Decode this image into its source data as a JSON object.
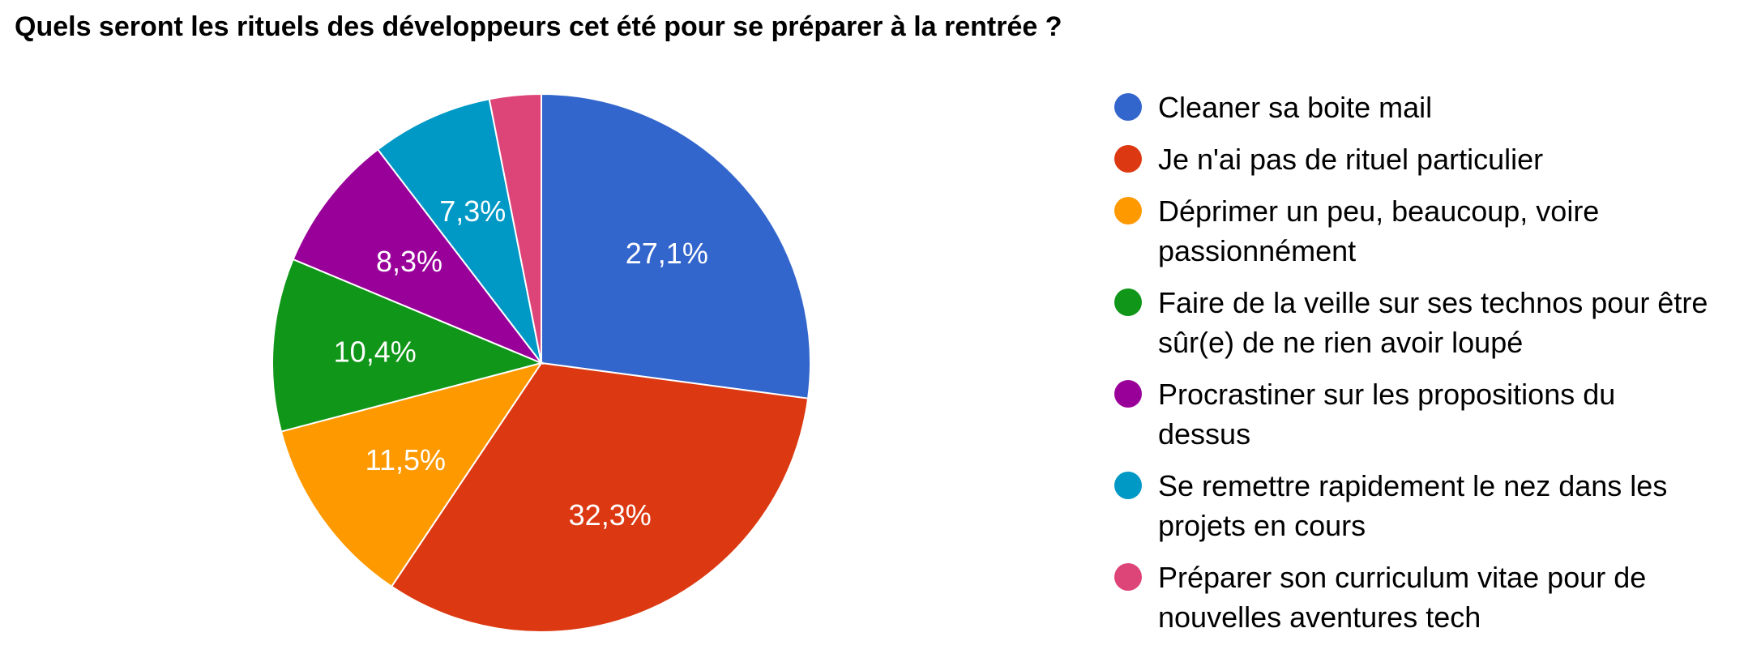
{
  "chart_data": {
    "type": "pie",
    "title": "Quels seront les rituels des développeurs cet été pour se préparer à la rentrée ?",
    "legend_position": "right",
    "slices": [
      {
        "label": "Cleaner sa boite mail",
        "value": 27.1,
        "display": "27,1%",
        "color": "#3366cc"
      },
      {
        "label": "Je n'ai pas de rituel particulier",
        "value": 32.3,
        "display": "32,3%",
        "color": "#dc3912"
      },
      {
        "label": "Déprimer un peu, beaucoup, voire passionnément",
        "value": 11.5,
        "display": "11,5%",
        "color": "#ff9900"
      },
      {
        "label": "Faire de la veille sur ses technos pour être sûr(e) de ne rien avoir loupé",
        "value": 10.4,
        "display": "10,4%",
        "color": "#109618"
      },
      {
        "label": "Procrastiner sur les propositions du dessus",
        "value": 8.3,
        "display": "8,3%",
        "color": "#990099"
      },
      {
        "label": "Se remettre rapidement le nez dans les projets en cours",
        "value": 7.3,
        "display": "7,3%",
        "color": "#0099c6"
      },
      {
        "label": "Préparer son curriculum vitae pour de nouvelles aventures tech",
        "value": 3.1,
        "display": "",
        "color": "#dd4477"
      }
    ]
  }
}
